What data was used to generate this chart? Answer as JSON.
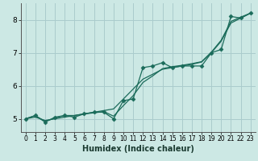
{
  "xlabel": "Humidex (Indice chaleur)",
  "bg_color": "#cce8e4",
  "grid_color": "#aacccc",
  "line_color": "#1a6b5a",
  "xlim": [
    -0.5,
    23.5
  ],
  "ylim": [
    4.6,
    8.5
  ],
  "xticks": [
    0,
    1,
    2,
    3,
    4,
    5,
    6,
    7,
    8,
    9,
    10,
    11,
    12,
    13,
    14,
    15,
    16,
    17,
    18,
    19,
    20,
    21,
    22,
    23
  ],
  "yticks": [
    5,
    6,
    7,
    8
  ],
  "line_straight1": [
    [
      0,
      5.0
    ],
    [
      23,
      8.2
    ]
  ],
  "line_straight2": [
    [
      0,
      5.0
    ],
    [
      23,
      8.2
    ]
  ],
  "line_marker": [
    5.0,
    5.1,
    4.9,
    5.05,
    5.1,
    5.05,
    5.15,
    5.2,
    5.2,
    5.0,
    5.55,
    5.6,
    6.55,
    6.6,
    6.7,
    6.55,
    6.6,
    6.6,
    6.6,
    7.0,
    7.1,
    8.1,
    8.05,
    8.2
  ],
  "line1_offsets": [
    5.0,
    5.05,
    4.95,
    5.0,
    5.05,
    5.1,
    5.15,
    5.2,
    5.25,
    5.3,
    5.6,
    5.9,
    6.2,
    6.35,
    6.5,
    6.55,
    6.6,
    6.65,
    6.72,
    7.0,
    7.35,
    7.9,
    8.05,
    8.2
  ],
  "line2_offsets": [
    5.0,
    5.1,
    4.92,
    5.02,
    5.1,
    5.1,
    5.15,
    5.18,
    5.22,
    5.08,
    5.4,
    5.7,
    6.1,
    6.3,
    6.52,
    6.58,
    6.62,
    6.67,
    6.73,
    7.02,
    7.38,
    7.95,
    8.08,
    8.2
  ],
  "marker": "D",
  "markersize": 2.5,
  "tick_fontsize": 5.5,
  "xlabel_fontsize": 7
}
